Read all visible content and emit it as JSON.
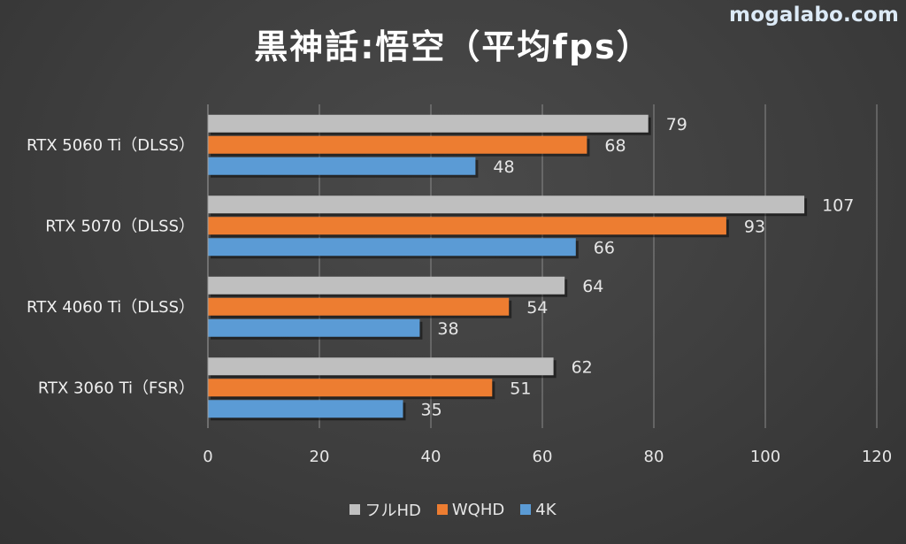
{
  "watermark": "mogalabo.com",
  "chart_data": {
    "type": "bar",
    "orientation": "horizontal",
    "title": "黒神話:悟空（平均fps）",
    "categories": [
      "RTX 5060 Ti（DLSS）",
      "RTX 5070（DLSS）",
      "RTX 4060 Ti（DLSS）",
      "RTX 3060 Ti（FSR）"
    ],
    "series": [
      {
        "name": "フルHD",
        "color": "#bfbfbf",
        "values": [
          79,
          107,
          64,
          62
        ]
      },
      {
        "name": "WQHD",
        "color": "#ed7d31",
        "values": [
          68,
          93,
          54,
          51
        ]
      },
      {
        "name": "4K",
        "color": "#5b9bd5",
        "values": [
          48,
          66,
          38,
          35
        ]
      }
    ],
    "xlim": [
      0,
      120
    ],
    "xticks": [
      "0",
      "20",
      "40",
      "60",
      "80",
      "100",
      "120"
    ],
    "grid": true,
    "legend_position": "bottom"
  }
}
